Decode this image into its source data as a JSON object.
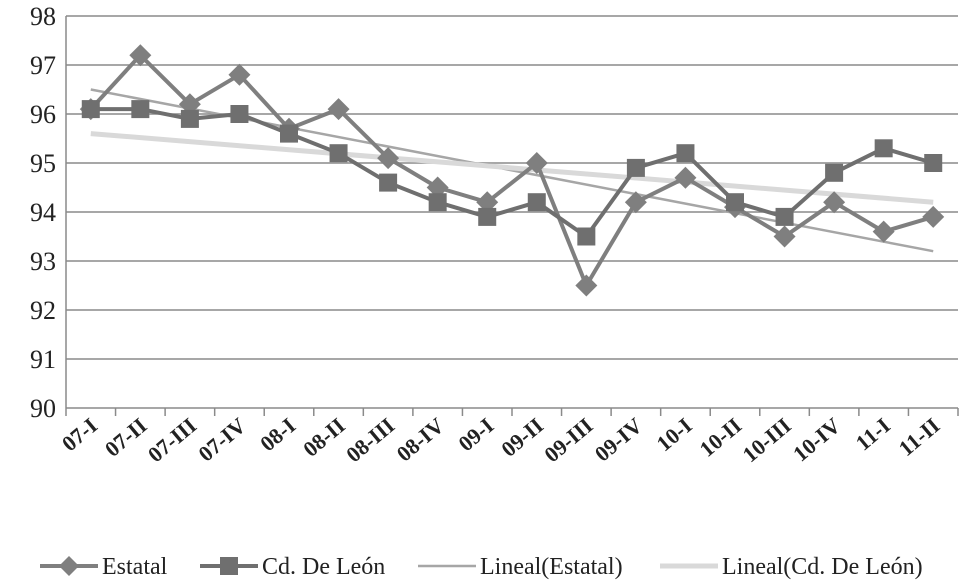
{
  "chart_data": {
    "type": "line",
    "title": "",
    "xlabel": "",
    "ylabel": "",
    "ylim": [
      90,
      98
    ],
    "yticks": [
      90,
      91,
      92,
      93,
      94,
      95,
      96,
      97,
      98
    ],
    "grid": "horizontal",
    "legend_position": "bottom",
    "categories": [
      "07-I",
      "07-II",
      "07-III",
      "07-IV",
      "08-I",
      "08-II",
      "08-III",
      "08-IV",
      "09-I",
      "09-II",
      "09-III",
      "09-IV",
      "10-I",
      "10-II",
      "10-III",
      "10-IV",
      "11-I",
      "11-II"
    ],
    "series": [
      {
        "name": "Estatal",
        "marker": "diamond",
        "color": "#7f7f7f",
        "values": [
          96.1,
          97.2,
          96.2,
          96.8,
          95.7,
          96.1,
          95.1,
          94.5,
          94.2,
          95.0,
          92.5,
          94.2,
          94.7,
          94.1,
          93.5,
          94.2,
          93.6,
          93.9
        ]
      },
      {
        "name": "Cd. De León",
        "marker": "square",
        "color": "#6f6f6f",
        "values": [
          96.1,
          96.1,
          95.9,
          96.0,
          95.6,
          95.2,
          94.6,
          94.2,
          93.9,
          94.2,
          93.5,
          94.9,
          95.2,
          94.2,
          93.9,
          94.8,
          95.3,
          95.0
        ]
      }
    ],
    "trendlines": [
      {
        "name": "Lineal(Estatal)",
        "color": "#a6a6a6",
        "start": 96.5,
        "end": 93.2
      },
      {
        "name": "Lineal(Cd. De León)",
        "color": "#d9d9d9",
        "start": 95.6,
        "end": 94.2
      }
    ]
  }
}
